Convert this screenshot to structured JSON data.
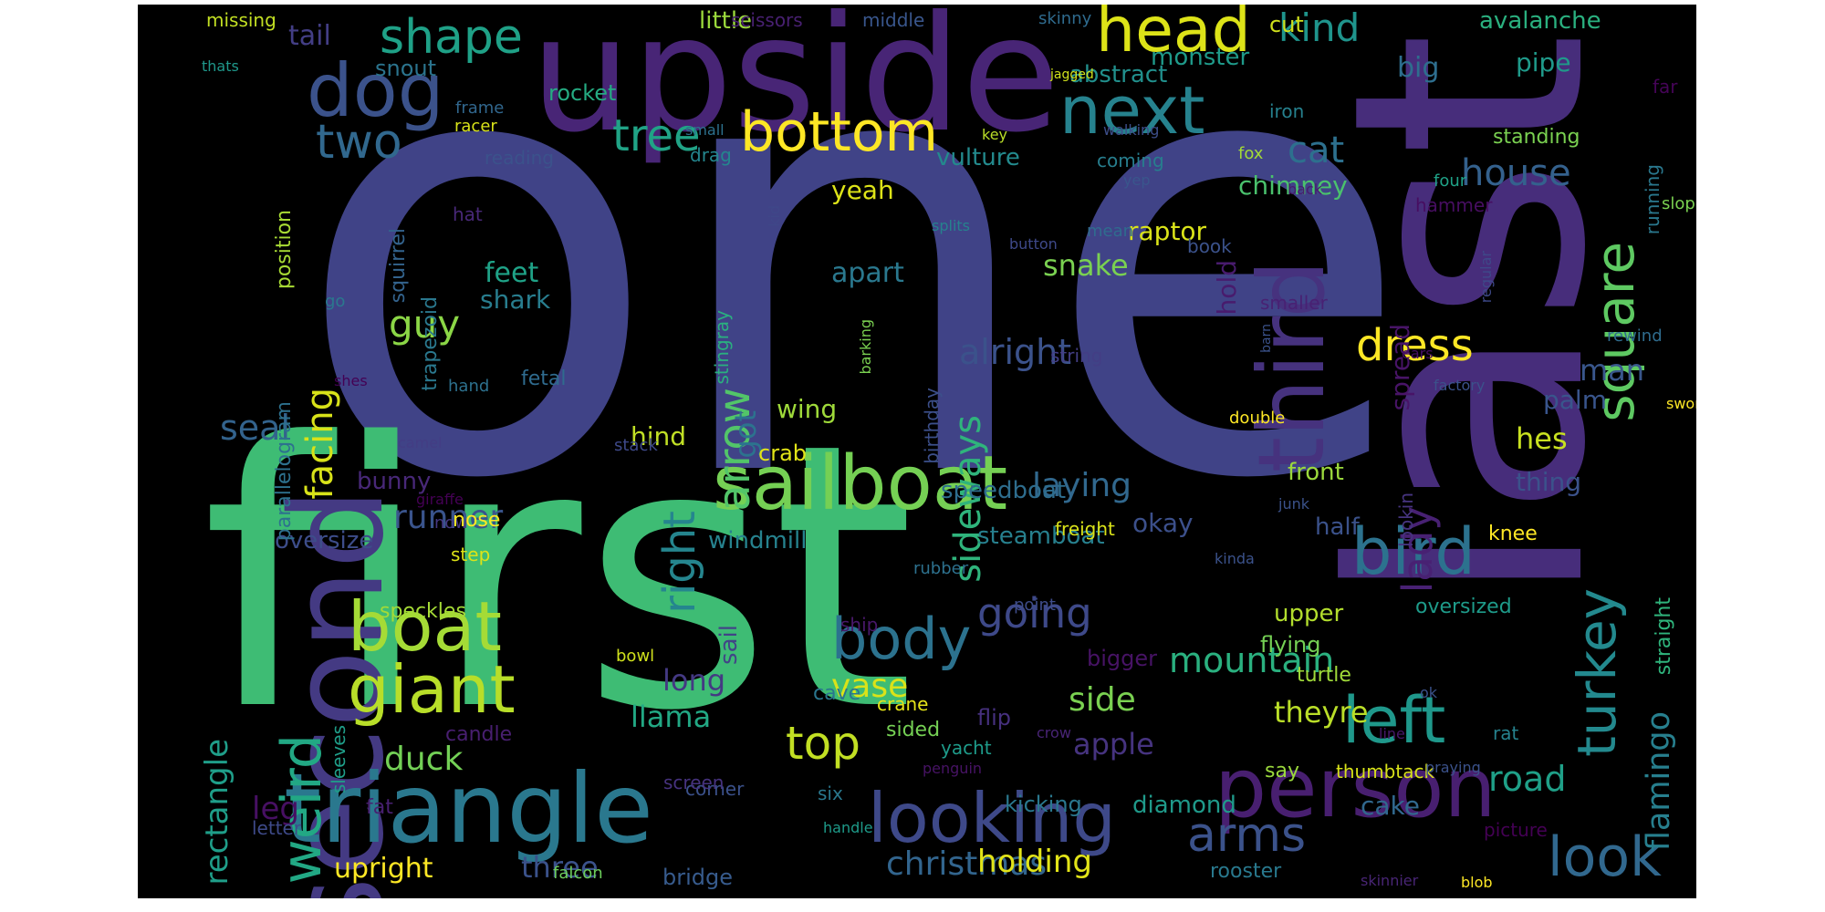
{
  "words": [
    {
      "text": "one",
      "color": "#404387"
    },
    {
      "text": "first",
      "color": "#3ebc74"
    },
    {
      "text": "last",
      "color": "#472d7b"
    },
    {
      "text": "upside",
      "color": "#482576"
    },
    {
      "text": "second",
      "color": "#443a83"
    },
    {
      "text": "third",
      "color": "#46327e"
    },
    {
      "text": "triangle",
      "color": "#2a788e"
    },
    {
      "text": "person",
      "color": "#481f70"
    },
    {
      "text": "sailboat",
      "color": "#75d054"
    },
    {
      "text": "head",
      "color": "#dde318"
    },
    {
      "text": "dog",
      "color": "#3b528b"
    },
    {
      "text": "next",
      "color": "#26828e"
    },
    {
      "text": "boat",
      "color": "#a5db36"
    },
    {
      "text": "giant",
      "color": "#b8de29"
    },
    {
      "text": "looking",
      "color": "#3e4989"
    },
    {
      "text": "body",
      "color": "#2c728e"
    },
    {
      "text": "bird",
      "color": "#2c728e"
    },
    {
      "text": "left",
      "color": "#1f988b"
    },
    {
      "text": "weird",
      "color": "#22a884"
    },
    {
      "text": "bottom",
      "color": "#fde725"
    },
    {
      "text": "shape",
      "color": "#1fa187"
    },
    {
      "text": "square",
      "color": "#5ec962"
    },
    {
      "text": "turkey",
      "color": "#23898e"
    },
    {
      "text": "look",
      "color": "#31688e"
    },
    {
      "text": "arms",
      "color": "#3b528b"
    },
    {
      "text": "top",
      "color": "#c2df23"
    },
    {
      "text": "tree",
      "color": "#20a386"
    },
    {
      "text": "two",
      "color": "#31688e"
    },
    {
      "text": "dress",
      "color": "#fde725"
    },
    {
      "text": "right",
      "color": "#25858e"
    },
    {
      "text": "arrow",
      "color": "#52c569"
    },
    {
      "text": "kind",
      "color": "#1f948c"
    },
    {
      "text": "guy",
      "color": "#8bd646"
    },
    {
      "text": "facing",
      "color": "#d8e219"
    },
    {
      "text": "going",
      "color": "#3e4989"
    },
    {
      "text": "lady",
      "color": "#482173"
    },
    {
      "text": "cat",
      "color": "#2d708e"
    },
    {
      "text": "house",
      "color": "#34618d"
    },
    {
      "text": "mountain",
      "color": "#2ab07f"
    },
    {
      "text": "flamingo",
      "color": "#277f8e"
    },
    {
      "text": "sideways",
      "color": "#2fb47c"
    },
    {
      "text": "alright",
      "color": "#3b528b"
    },
    {
      "text": "seal",
      "color": "#33638d"
    },
    {
      "text": "runner",
      "color": "#3a548c"
    },
    {
      "text": "laying",
      "color": "#31688e"
    },
    {
      "text": "road",
      "color": "#1fa088"
    },
    {
      "text": "vase",
      "color": "#dae319"
    },
    {
      "text": "christmas",
      "color": "#32658e"
    },
    {
      "text": "theyre",
      "color": "#bade28"
    },
    {
      "text": "side",
      "color": "#7ad151"
    },
    {
      "text": "leg",
      "color": "#471063"
    },
    {
      "text": "rectangle",
      "color": "#1f9e89"
    },
    {
      "text": "long",
      "color": "#443983"
    },
    {
      "text": "llama",
      "color": "#22a884"
    },
    {
      "text": "holding",
      "color": "#e2e418"
    },
    {
      "text": "upright",
      "color": "#fde725"
    },
    {
      "text": "three",
      "color": "#3b528b"
    },
    {
      "text": "duck",
      "color": "#73d056"
    },
    {
      "text": "apple",
      "color": "#46337f"
    },
    {
      "text": "man",
      "color": "#39568c"
    },
    {
      "text": "cake",
      "color": "#31688e"
    },
    {
      "text": "tail",
      "color": "#433e85"
    },
    {
      "text": "little",
      "color": "#9bd93c"
    },
    {
      "text": "monster",
      "color": "#1f9a8a"
    },
    {
      "text": "big",
      "color": "#2e6e8e"
    },
    {
      "text": "pipe",
      "color": "#1f9a8a"
    },
    {
      "text": "cut",
      "color": "#d0e11c"
    },
    {
      "text": "avalanche",
      "color": "#2ab07f"
    },
    {
      "text": "abstract",
      "color": "#21908d"
    },
    {
      "text": "snout",
      "color": "#2b748e"
    },
    {
      "text": "rocket",
      "color": "#25ab82"
    },
    {
      "text": "vulture",
      "color": "#238a8d"
    },
    {
      "text": "chimney",
      "color": "#4ac16d"
    },
    {
      "text": "snake",
      "color": "#7ad151"
    },
    {
      "text": "feet",
      "color": "#1fa287"
    },
    {
      "text": "shark",
      "color": "#287d8e"
    },
    {
      "text": "apart",
      "color": "#2a788e"
    },
    {
      "text": "raptor",
      "color": "#dae319"
    },
    {
      "text": "spread",
      "color": "#481467"
    },
    {
      "text": "hold",
      "color": "#481b6d"
    },
    {
      "text": "yeah",
      "color": "#dde318"
    },
    {
      "text": "wing",
      "color": "#9fda3a"
    },
    {
      "text": "got",
      "color": "#2c738e"
    },
    {
      "text": "hes",
      "color": "#c8e020"
    },
    {
      "text": "palm",
      "color": "#39558c"
    },
    {
      "text": "thing",
      "color": "#3b528b"
    },
    {
      "text": "crab",
      "color": "#e2e418"
    },
    {
      "text": "hind",
      "color": "#c0df25"
    },
    {
      "text": "speedboat",
      "color": "#2e6d8e"
    },
    {
      "text": "front",
      "color": "#9bd93c"
    },
    {
      "text": "bunny",
      "color": "#482878"
    },
    {
      "text": "okay",
      "color": "#3c508b"
    },
    {
      "text": "half",
      "color": "#3b528b"
    },
    {
      "text": "oversize",
      "color": "#3d4d8a"
    },
    {
      "text": "windmill",
      "color": "#26828e"
    },
    {
      "text": "steamboat",
      "color": "#27808e"
    },
    {
      "text": "sail",
      "color": "#414487"
    },
    {
      "text": "upper",
      "color": "#b2dd2d"
    },
    {
      "text": "oversized",
      "color": "#1e9b8a"
    },
    {
      "text": "knee",
      "color": "#fde725"
    },
    {
      "text": "flying",
      "color": "#75d054"
    },
    {
      "text": "bigger",
      "color": "#471365"
    },
    {
      "text": "turtle",
      "color": "#a0da39"
    },
    {
      "text": "cave",
      "color": "#2a768e"
    },
    {
      "text": "flip",
      "color": "#46307e"
    },
    {
      "text": "sided",
      "color": "#75d054"
    },
    {
      "text": "crane",
      "color": "#e5e419"
    },
    {
      "text": "diamond",
      "color": "#1f9a8a"
    },
    {
      "text": "kicking",
      "color": "#2a788e"
    },
    {
      "text": "say",
      "color": "#9bd93c"
    },
    {
      "text": "rooster",
      "color": "#29798e"
    },
    {
      "text": "bridge",
      "color": "#375b8d"
    },
    {
      "text": "corner",
      "color": "#3b518b"
    },
    {
      "text": "fat",
      "color": "#482071"
    },
    {
      "text": "letter",
      "color": "#3e4a89"
    },
    {
      "text": "speckles",
      "color": "#a5db36"
    },
    {
      "text": "candle",
      "color": "#481f70"
    },
    {
      "text": "scissors",
      "color": "#482071"
    },
    {
      "text": "middle",
      "color": "#39568c"
    },
    {
      "text": "skinny",
      "color": "#2f6b8e"
    },
    {
      "text": "missing",
      "color": "#c2df23"
    },
    {
      "text": "thats",
      "color": "#1f988b"
    },
    {
      "text": "jagged",
      "color": "#d0e11c"
    },
    {
      "text": "far",
      "color": "#450457"
    },
    {
      "text": "iron",
      "color": "#26818e"
    },
    {
      "text": "frame",
      "color": "#31678e"
    },
    {
      "text": "racer",
      "color": "#d8e219"
    },
    {
      "text": "reading",
      "color": "#3b528b"
    },
    {
      "text": "small",
      "color": "#2d718e"
    },
    {
      "text": "key",
      "color": "#bade28"
    },
    {
      "text": "walking",
      "color": "#3d4e8a"
    },
    {
      "text": "fox",
      "color": "#a2da37"
    },
    {
      "text": "coming",
      "color": "#277e8e"
    },
    {
      "text": "drag",
      "color": "#24868e"
    },
    {
      "text": "standing",
      "color": "#7ad151"
    },
    {
      "text": "running",
      "color": "#2a788e"
    },
    {
      "text": "hammer",
      "color": "#470e61"
    },
    {
      "text": "slope",
      "color": "#7ad151"
    },
    {
      "text": "iceberg",
      "color": "#2e6d8e"
    },
    {
      "text": "book",
      "color": "#3b528b"
    },
    {
      "text": "mean",
      "color": "#2f6c8e"
    },
    {
      "text": "yep",
      "color": "#39568c"
    },
    {
      "text": "four",
      "color": "#1fa287"
    },
    {
      "text": "back",
      "color": "#481c6e"
    },
    {
      "text": "hat",
      "color": "#482878"
    },
    {
      "text": "squirrel",
      "color": "#33638d"
    },
    {
      "text": "trapezoid",
      "color": "#2a788e"
    },
    {
      "text": "parallelogram",
      "color": "#2d718e"
    },
    {
      "text": "position",
      "color": "#a8db34"
    },
    {
      "text": "kid",
      "color": "#3f4788"
    },
    {
      "text": "splits",
      "color": "#26828e"
    },
    {
      "text": "button",
      "color": "#3e4989"
    },
    {
      "text": "birthday",
      "color": "#3c4f8a"
    },
    {
      "text": "stingray",
      "color": "#2ab07f"
    },
    {
      "text": "barking",
      "color": "#7ad151"
    },
    {
      "text": "fetal",
      "color": "#2f6b8e"
    },
    {
      "text": "hand",
      "color": "#2d718e"
    },
    {
      "text": "shes",
      "color": "#440154"
    },
    {
      "text": "go",
      "color": "#2a788e"
    },
    {
      "text": "string",
      "color": "#433e85"
    },
    {
      "text": "smaller",
      "color": "#482173"
    },
    {
      "text": "regular",
      "color": "#3e4989"
    },
    {
      "text": "ears",
      "color": "#471063"
    },
    {
      "text": "rewind",
      "color": "#2f6c8e"
    },
    {
      "text": "factory",
      "color": "#3b528b"
    },
    {
      "text": "barn",
      "color": "#3b528b"
    },
    {
      "text": "double",
      "color": "#fde725"
    },
    {
      "text": "sword",
      "color": "#fde725"
    },
    {
      "text": "camel",
      "color": "#433d84"
    },
    {
      "text": "stack",
      "color": "#3e4989"
    },
    {
      "text": "giraffe",
      "color": "#440154"
    },
    {
      "text": "now",
      "color": "#453882"
    },
    {
      "text": "nose",
      "color": "#fde725"
    },
    {
      "text": "freight",
      "color": "#dae319"
    },
    {
      "text": "junk",
      "color": "#3b528b"
    },
    {
      "text": "kinda",
      "color": "#3b528b"
    },
    {
      "text": "step",
      "color": "#dde318"
    },
    {
      "text": "lookin",
      "color": "#463480"
    },
    {
      "text": "rubber",
      "color": "#2d718e"
    },
    {
      "text": "point",
      "color": "#3e4c8a"
    },
    {
      "text": "straight",
      "color": "#2fb47c"
    },
    {
      "text": "ship",
      "color": "#48186a"
    },
    {
      "text": "bowl",
      "color": "#d0e11c"
    },
    {
      "text": "sleeves",
      "color": "#1f9e89"
    },
    {
      "text": "yacht",
      "color": "#1e9b8a"
    },
    {
      "text": "crow",
      "color": "#482475"
    },
    {
      "text": "ok",
      "color": "#3b528b"
    },
    {
      "text": "line",
      "color": "#48186a"
    },
    {
      "text": "rat",
      "color": "#26828e"
    },
    {
      "text": "thumbtack",
      "color": "#d8e219"
    },
    {
      "text": "praying",
      "color": "#3b528b"
    },
    {
      "text": "penguin",
      "color": "#471365"
    },
    {
      "text": "screen",
      "color": "#46327e"
    },
    {
      "text": "six",
      "color": "#2a788e"
    },
    {
      "text": "handle",
      "color": "#1e9b8a"
    },
    {
      "text": "picture",
      "color": "#440154"
    },
    {
      "text": "falcon",
      "color": "#6ccd5a"
    },
    {
      "text": "skinnier",
      "color": "#482575"
    },
    {
      "text": "blob",
      "color": "#fde725"
    }
  ]
}
